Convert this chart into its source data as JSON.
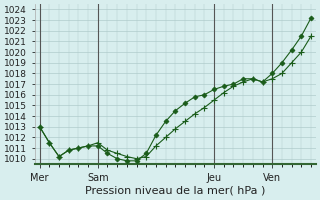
{
  "title": "Pression niveau de la mer( hPa )",
  "ylabel_ticks": [
    1010,
    1011,
    1012,
    1013,
    1014,
    1015,
    1016,
    1017,
    1018,
    1019,
    1020,
    1021,
    1022,
    1023,
    1024
  ],
  "ylim": [
    1009.5,
    1024.5
  ],
  "day_labels": [
    "Mer",
    "Sam",
    "Jeu",
    "Ven"
  ],
  "day_positions": [
    0,
    12,
    36,
    48
  ],
  "bg_color": "#d8eeee",
  "grid_color": "#b0cccc",
  "line_color": "#1a5c1a",
  "marker_color": "#1a5c1a",
  "line1_x": [
    0,
    2,
    4,
    6,
    8,
    10,
    12,
    14,
    16,
    18,
    20,
    22,
    24,
    26,
    28,
    30,
    32,
    34,
    36,
    38,
    40,
    42,
    44,
    46,
    48,
    50,
    52,
    54,
    56
  ],
  "line1_y": [
    1013.0,
    1011.5,
    1010.2,
    1010.8,
    1011.0,
    1011.2,
    1011.5,
    1010.8,
    1010.5,
    1010.2,
    1010.0,
    1010.2,
    1011.2,
    1012.0,
    1012.8,
    1013.5,
    1014.2,
    1014.8,
    1015.5,
    1016.2,
    1016.8,
    1017.2,
    1017.5,
    1017.2,
    1017.5,
    1018.0,
    1019.0,
    1020.0,
    1021.5
  ],
  "line2_x": [
    0,
    2,
    4,
    6,
    8,
    10,
    12,
    14,
    16,
    18,
    20,
    22,
    24,
    26,
    28,
    30,
    32,
    34,
    36,
    38,
    40,
    42,
    44,
    46,
    48,
    50,
    52,
    54,
    56
  ],
  "line2_y": [
    1013.0,
    1011.5,
    1010.2,
    1010.8,
    1011.0,
    1011.2,
    1011.2,
    1010.5,
    1010.0,
    1009.8,
    1009.8,
    1010.5,
    1012.2,
    1013.5,
    1014.5,
    1015.2,
    1015.8,
    1016.0,
    1016.5,
    1016.8,
    1017.0,
    1017.5,
    1017.5,
    1017.2,
    1018.0,
    1019.0,
    1020.2,
    1021.5,
    1023.2
  ]
}
